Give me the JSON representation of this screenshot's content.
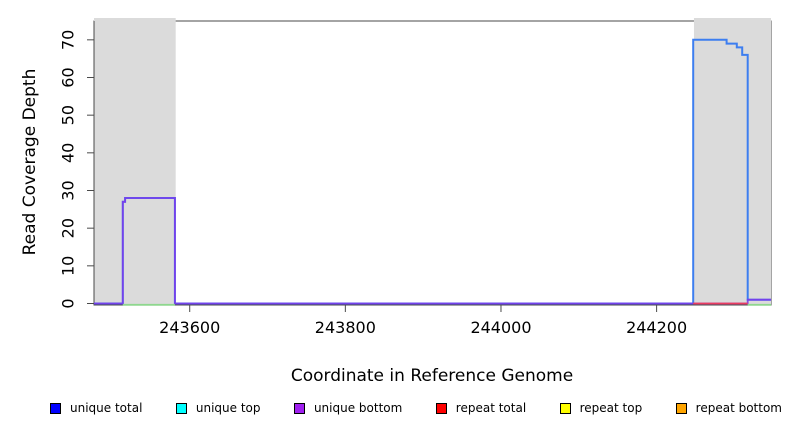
{
  "figure": {
    "x_axis_title": "Coordinate in Reference Genome",
    "y_axis_title": "Read Coverage Depth"
  },
  "legend": {
    "items": [
      {
        "label": "unique total",
        "color": "#0000FF"
      },
      {
        "label": "unique top",
        "color": "#00FFFF"
      },
      {
        "label": "unique bottom",
        "color": "#A020F0"
      },
      {
        "label": "repeat total",
        "color": "#FF0000"
      },
      {
        "label": "repeat top",
        "color": "#FFFF00"
      },
      {
        "label": "repeat bottom",
        "color": "#FFA500"
      }
    ]
  },
  "chart_data": {
    "type": "line",
    "title": "",
    "xlabel": "Coordinate in Reference Genome",
    "ylabel": "Read Coverage Depth",
    "xlim": [
      243477,
      244347
    ],
    "ylim": [
      0,
      75
    ],
    "xticks": [
      243600,
      243800,
      244000,
      244200
    ],
    "yticks": [
      0,
      10,
      20,
      30,
      40,
      50,
      60,
      70
    ],
    "grid": false,
    "legend_position": "bottom",
    "frame_color": "#4a4a4a",
    "highlight_regions": [
      {
        "x0": 243477,
        "x1": 243582,
        "color": "#DBDBDB"
      },
      {
        "x0": 244248,
        "x1": 244347,
        "color": "#DBDBDB"
      }
    ],
    "series": [
      {
        "name": "unique top",
        "color": "#00FFFF",
        "width": 1.8,
        "opacity": 1,
        "segments": [],
        "note": "zero across plotted range; hidden beneath other series"
      },
      {
        "name": "repeat top",
        "color": "#FFFF00",
        "width": 1.8,
        "opacity": 1,
        "segments": [],
        "note": "zero across plotted range; hidden beneath other series"
      },
      {
        "name": "repeat bottom",
        "color": "#FFA500",
        "width": 1.8,
        "opacity": 1,
        "segments": [],
        "note": "zero across plotted range; hidden beneath other series"
      },
      {
        "name": "unique total",
        "color": "#3D7EF0",
        "width": 2,
        "opacity": 1,
        "segments": [
          [
            [
              243477,
              0
            ],
            [
              243514,
              0
            ],
            [
              243514,
              27
            ],
            [
              243517,
              27
            ],
            [
              243517,
              28
            ],
            [
              243581,
              28
            ],
            [
              243581,
              0
            ],
            [
              244247,
              0
            ],
            [
              244247,
              70
            ],
            [
              244290,
              70
            ],
            [
              244290,
              69
            ],
            [
              244303,
              69
            ],
            [
              244303,
              68
            ],
            [
              244310,
              68
            ],
            [
              244310,
              66
            ],
            [
              244317,
              66
            ],
            [
              244317,
              1
            ],
            [
              244347,
              1
            ]
          ]
        ]
      },
      {
        "name": "unique bottom",
        "color": "#7B3BEA",
        "width": 1.8,
        "opacity": 0.9,
        "segments": [
          [
            [
              243477,
              0
            ],
            [
              243514,
              0
            ],
            [
              243514,
              27
            ],
            [
              243517,
              27
            ],
            [
              243517,
              28
            ],
            [
              243581,
              28
            ],
            [
              243581,
              0
            ],
            [
              244317,
              0
            ],
            [
              244317,
              1
            ],
            [
              244347,
              1
            ]
          ]
        ]
      },
      {
        "name": "repeat total",
        "color": "#EC3C60",
        "width": 1.8,
        "opacity": 1,
        "segments": [
          [
            [
              244247,
              0
            ],
            [
              244317,
              0
            ]
          ]
        ]
      },
      {
        "name": "feature annotation (green)",
        "color": "#8FD78F",
        "width": 1.8,
        "opacity": 1,
        "segments": [
          [
            [
              243514,
              -0.35
            ],
            [
              243581,
              -0.35
            ]
          ],
          [
            [
              244317,
              -0.35
            ],
            [
              244347,
              -0.35
            ]
          ]
        ]
      }
    ]
  }
}
